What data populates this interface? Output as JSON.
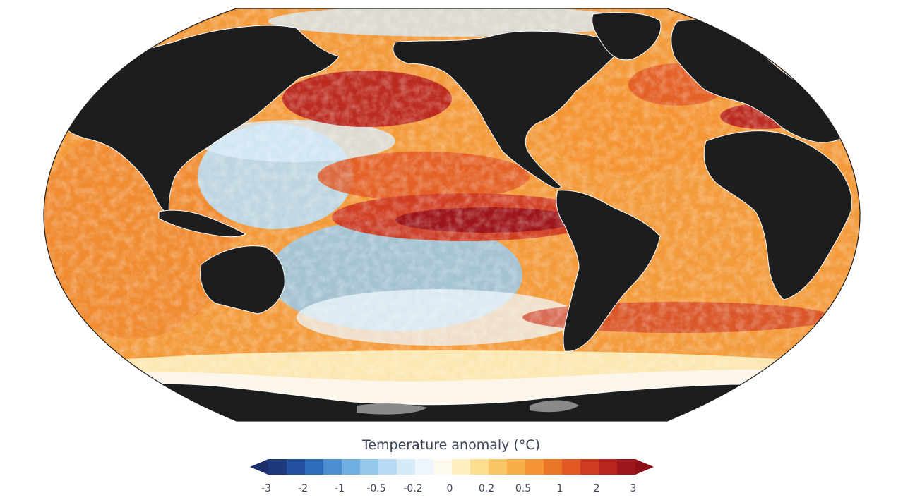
{
  "map": {
    "projection": "robinson",
    "land_color": "#1c1d1f",
    "sea_ice_color": "#fbf6e9",
    "ice_shelf_color": "#8a8a8a",
    "coastline_color": "#ffffff"
  },
  "legend": {
    "title": "Temperature anomaly (°C)",
    "colors": [
      "#1f3a7a",
      "#2451a0",
      "#2f6cbc",
      "#4b8fd0",
      "#6eaee0",
      "#95c9ec",
      "#b8dcf3",
      "#d6eaf7",
      "#eef6fb",
      "#fdf9ec",
      "#fdefbf",
      "#fcde91",
      "#fbc766",
      "#f9ae45",
      "#f49432",
      "#ec7628",
      "#e15824",
      "#cf3a22",
      "#b8251e",
      "#9d161b"
    ],
    "low_end_color": "#1a2f6b",
    "high_end_color": "#8c1018",
    "ticks": [
      "-3",
      "-2",
      "-1",
      "-0.5",
      "-0.2",
      "0",
      "0.2",
      "0.5",
      "1",
      "2",
      "3"
    ],
    "tick_positions": [
      1,
      3,
      5,
      7,
      9,
      11,
      13,
      15,
      17,
      19,
      21
    ]
  }
}
